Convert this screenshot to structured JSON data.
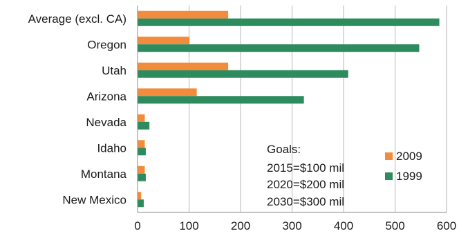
{
  "chart_data": {
    "type": "bar",
    "orientation": "horizontal",
    "categories": [
      "Average (excl. CA)",
      "Oregon",
      "Utah",
      "Arizona",
      "Nevada",
      "Idaho",
      "Montana",
      "New Mexico"
    ],
    "series": [
      {
        "name": "2009",
        "color": "#f28c3c",
        "values": [
          176,
          101,
          176,
          115,
          14,
          14,
          14,
          7
        ]
      },
      {
        "name": "1999",
        "color": "#2e8b5e",
        "values": [
          586,
          547,
          409,
          323,
          23,
          16,
          16,
          12
        ]
      }
    ],
    "xlim": [
      0,
      600
    ],
    "xticks": [
      0,
      100,
      200,
      300,
      400,
      500,
      600
    ],
    "xtick_labels": [
      "0",
      "100",
      "200",
      "300",
      "400",
      "500",
      "600"
    ],
    "title": "",
    "xlabel": "",
    "ylabel": "",
    "grid": "vertical",
    "legend_position": "lower-right",
    "annotation": [
      "Goals:",
      "2015=$100 mil",
      "2020=$200 mil",
      "2030=$300 mil"
    ]
  }
}
